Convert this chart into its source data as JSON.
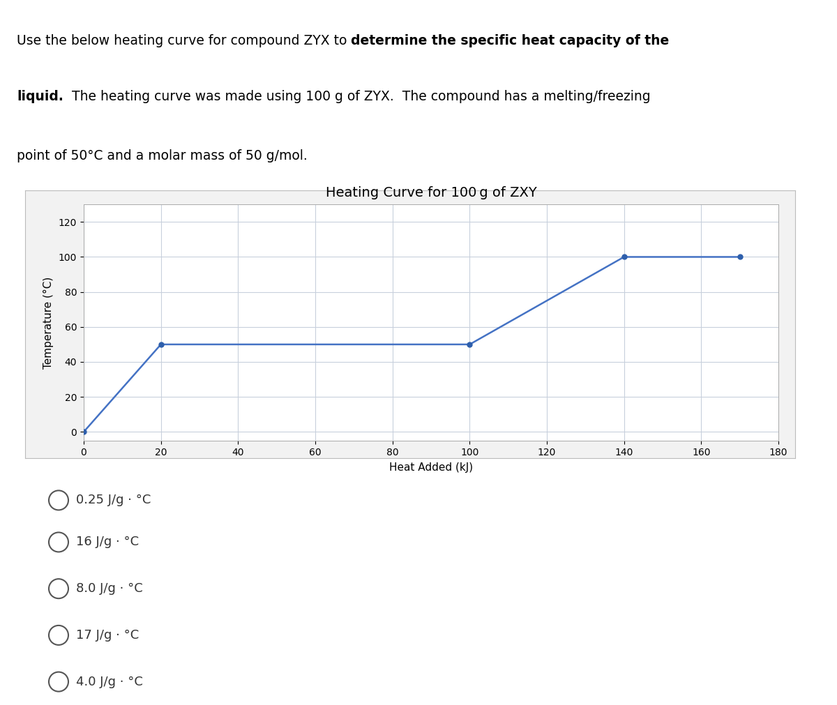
{
  "title": "Heating Curve for 100 g of ZXY",
  "xlabel": "Heat Added (kJ)",
  "ylabel": "Temperature (°C)",
  "x_data": [
    0,
    20,
    100,
    140,
    170
  ],
  "y_data": [
    0,
    50,
    50,
    100,
    100
  ],
  "xlim": [
    0,
    180
  ],
  "ylim": [
    -5,
    130
  ],
  "xticks": [
    0,
    20,
    40,
    60,
    80,
    100,
    120,
    140,
    160,
    180
  ],
  "yticks": [
    0,
    20,
    40,
    60,
    80,
    100,
    120
  ],
  "line_color": "#4472C4",
  "marker_color": "#2E5FAC",
  "marker_style": "o",
  "marker_size": 5,
  "line_width": 1.8,
  "title_fontsize": 14,
  "axis_label_fontsize": 11,
  "tick_fontsize": 10,
  "grid_color": "#C8D0DC",
  "plot_bg_color": "#FFFFFF",
  "choices": [
    "0.25 J/g · °C",
    "16 J/g · °C",
    "8.0 J/g · °C",
    "17 J/g · °C",
    "4.0 J/g · °C"
  ],
  "choice_fontsize": 13,
  "header_fontsize": 13.5,
  "radio_diameter": 0.022
}
